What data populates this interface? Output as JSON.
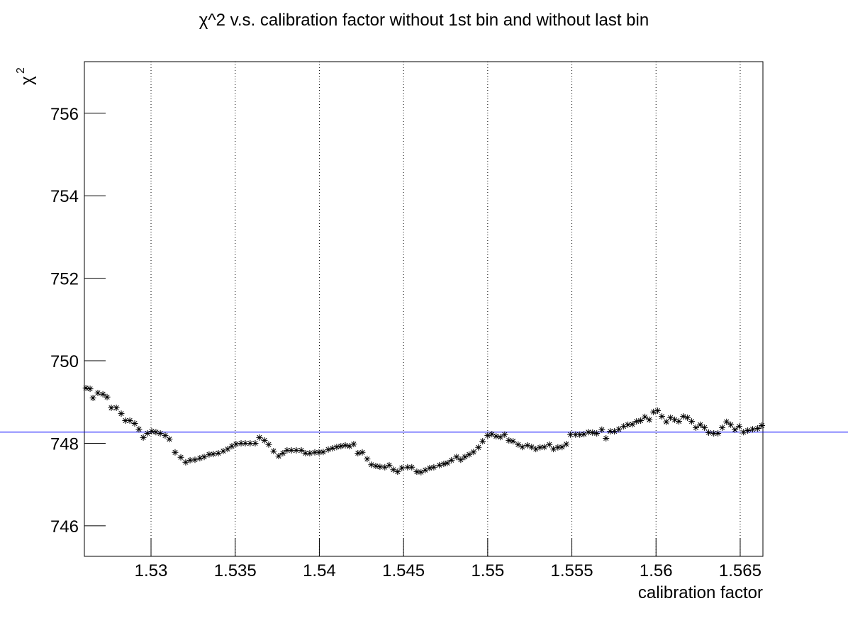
{
  "chart_data": {
    "type": "scatter",
    "title": "χ^2 v.s. calibration factor without 1st bin and without last bin",
    "xlabel": "calibration factor",
    "ylabel": "χ",
    "ylabel_superscript": "2",
    "xlim": [
      1.52604,
      1.56635
    ],
    "ylim": [
      745.26,
      757.25
    ],
    "xticks": [
      1.53,
      1.535,
      1.54,
      1.545,
      1.55,
      1.555,
      1.56,
      1.565
    ],
    "yticks": [
      746,
      748,
      750,
      752,
      754,
      756
    ],
    "grid": true,
    "marker": "asterisk",
    "hline": {
      "value": 748.27,
      "color": "#0000ff"
    },
    "series": [
      {
        "color": "#000000",
        "x": [
          1.52613,
          1.52638,
          1.52655,
          1.52684,
          1.52714,
          1.52739,
          1.52764,
          1.52794,
          1.52823,
          1.52848,
          1.52874,
          1.52903,
          1.52928,
          1.52954,
          1.52979,
          1.53004,
          1.53029,
          1.53055,
          1.53084,
          1.53109,
          1.53143,
          1.53177,
          1.53206,
          1.53232,
          1.53261,
          1.5329,
          1.53316,
          1.53345,
          1.5337,
          1.534,
          1.53429,
          1.53455,
          1.5348,
          1.53505,
          1.53535,
          1.5356,
          1.53589,
          1.53619,
          1.53644,
          1.53674,
          1.53699,
          1.53728,
          1.53758,
          1.53783,
          1.53808,
          1.53834,
          1.53863,
          1.53893,
          1.53918,
          1.53943,
          1.53973,
          1.53998,
          1.54023,
          1.54053,
          1.54078,
          1.54103,
          1.54128,
          1.54154,
          1.54179,
          1.54204,
          1.54229,
          1.54255,
          1.54284,
          1.54309,
          1.54335,
          1.5436,
          1.54389,
          1.54415,
          1.5444,
          1.54465,
          1.5449,
          1.54524,
          1.54549,
          1.54579,
          1.54604,
          1.54629,
          1.54655,
          1.5468,
          1.54713,
          1.54739,
          1.5476,
          1.54785,
          1.54815,
          1.5484,
          1.54865,
          1.5489,
          1.54916,
          1.54945,
          1.5497,
          1.55,
          1.55025,
          1.5505,
          1.55076,
          1.55101,
          1.55126,
          1.55151,
          1.55181,
          1.55206,
          1.55236,
          1.55261,
          1.55286,
          1.55311,
          1.55337,
          1.55366,
          1.55391,
          1.55417,
          1.55442,
          1.55467,
          1.55492,
          1.55522,
          1.55547,
          1.55572,
          1.55598,
          1.55623,
          1.55648,
          1.55678,
          1.55703,
          1.55728,
          1.55753,
          1.55779,
          1.55808,
          1.55833,
          1.55859,
          1.55884,
          1.55909,
          1.55934,
          1.5596,
          1.55985,
          1.5601,
          1.56035,
          1.56061,
          1.56086,
          1.56111,
          1.56136,
          1.56162,
          1.56187,
          1.56212,
          1.56237,
          1.56263,
          1.56288,
          1.56313,
          1.56343,
          1.56368,
          1.56393,
          1.56419,
          1.56444,
          1.56469,
          1.56494,
          1.5652,
          1.56545,
          1.56574,
          1.56604,
          1.56629
        ],
        "values": [
          749.34,
          749.32,
          749.1,
          749.22,
          749.19,
          749.12,
          748.86,
          748.86,
          748.72,
          748.55,
          748.55,
          748.48,
          748.34,
          748.14,
          748.24,
          748.29,
          748.27,
          748.24,
          748.19,
          748.1,
          747.78,
          747.66,
          747.54,
          747.59,
          747.6,
          747.64,
          747.67,
          747.73,
          747.74,
          747.76,
          747.81,
          747.86,
          747.93,
          747.98,
          748,
          748,
          748,
          748,
          748.14,
          748.07,
          747.97,
          747.81,
          747.69,
          747.76,
          747.83,
          747.83,
          747.83,
          747.83,
          747.76,
          747.76,
          747.78,
          747.78,
          747.79,
          747.85,
          747.88,
          747.91,
          747.93,
          747.95,
          747.93,
          747.98,
          747.76,
          747.78,
          747.62,
          747.48,
          747.45,
          747.43,
          747.42,
          747.47,
          747.36,
          747.31,
          747.4,
          747.42,
          747.42,
          747.31,
          747.3,
          747.35,
          747.4,
          747.42,
          747.47,
          747.5,
          747.52,
          747.59,
          747.67,
          747.6,
          747.67,
          747.73,
          747.79,
          747.9,
          748.05,
          748.19,
          748.22,
          748.17,
          748.15,
          748.21,
          748.07,
          748.05,
          747.97,
          747.91,
          747.95,
          747.91,
          747.86,
          747.9,
          747.91,
          747.97,
          747.86,
          747.9,
          747.91,
          747.98,
          748.21,
          748.21,
          748.21,
          748.22,
          748.27,
          748.26,
          748.24,
          748.33,
          748.12,
          748.29,
          748.29,
          748.34,
          748.41,
          748.45,
          748.46,
          748.53,
          748.55,
          748.64,
          748.57,
          748.76,
          748.79,
          748.65,
          748.52,
          748.62,
          748.57,
          748.53,
          748.65,
          748.62,
          748.53,
          748.38,
          748.45,
          748.38,
          748.26,
          748.24,
          748.24,
          748.38,
          748.52,
          748.45,
          748.33,
          748.41,
          748.27,
          748.31,
          748.34,
          748.36,
          748.43
        ]
      }
    ]
  }
}
